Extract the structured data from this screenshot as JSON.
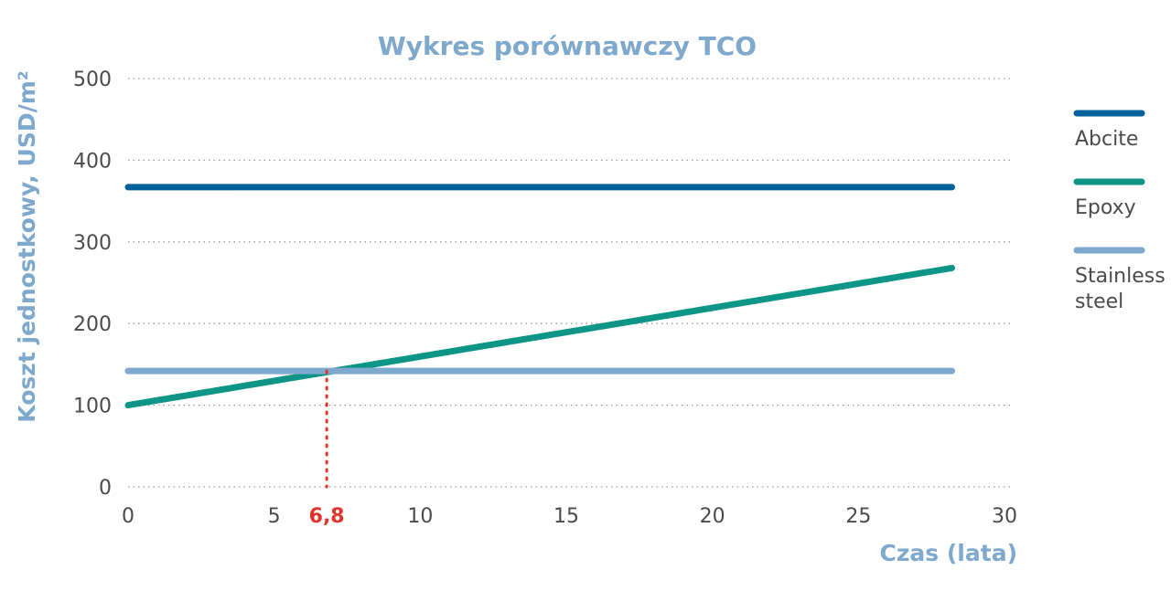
{
  "chart_data": {
    "type": "line",
    "title": "Wykres porównawczy TCO",
    "xlabel": "Czas (lata)",
    "ylabel": "Koszt jednostkowy, USD/m²",
    "xlim": [
      0,
      30
    ],
    "ylim": [
      0,
      500
    ],
    "x_ticks": [
      0,
      5,
      10,
      15,
      20,
      25,
      30
    ],
    "y_ticks": [
      0,
      100,
      200,
      300,
      400,
      500
    ],
    "grid": "horizontal dotted",
    "legend_position": "right",
    "series": [
      {
        "name": "Abcite",
        "color": "#00629b",
        "x": [
          0,
          28.2
        ],
        "y": [
          367,
          367
        ],
        "legend_lines": [
          "Abcite"
        ]
      },
      {
        "name": "Epoxy",
        "color": "#0f9488",
        "x": [
          0,
          28.2
        ],
        "y": [
          100,
          268
        ],
        "legend_lines": [
          "Epoxy"
        ]
      },
      {
        "name": "Stainless steel",
        "color": "#7ea8cc",
        "x": [
          0,
          28.2
        ],
        "y": [
          142,
          142
        ],
        "legend_lines": [
          "Stainless",
          "steel"
        ]
      }
    ],
    "annotation": {
      "label": "6,8",
      "x": 6.8,
      "y": 142,
      "color": "#e2332b"
    }
  }
}
